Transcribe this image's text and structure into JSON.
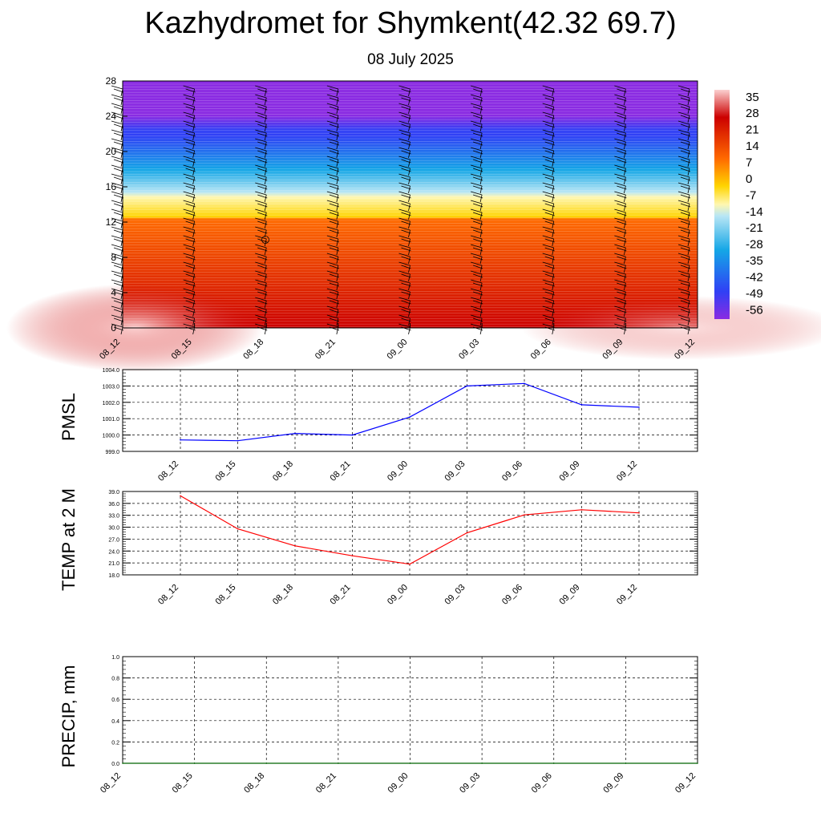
{
  "header": {
    "title": "Kazhydromet for Shymkent(42.32 69.7)",
    "subtitle": "08 July 2025"
  },
  "chart_data": [
    {
      "type": "heatmap",
      "title": "Kazhydromet for Shymkent(42.32 69.7)",
      "subtitle": "08 July 2025",
      "xlabel": "",
      "ylabel": "",
      "x_ticks": [
        "08_12",
        "08_15",
        "08_18",
        "08_21",
        "09_00",
        "09_03",
        "09_06",
        "09_09",
        "09_12"
      ],
      "y_ticks": [
        0,
        4,
        8,
        12,
        16,
        20,
        24,
        28
      ],
      "ylim": [
        0,
        28
      ],
      "colorbar_labels": [
        "35",
        "28",
        "21",
        "14",
        "7",
        "0",
        "-7",
        "-14",
        "-21",
        "-28",
        "-35",
        "-42",
        "-49",
        "-56"
      ],
      "colorbar_range": [
        -60,
        38
      ],
      "colors": {
        "warmest": "#fbd0d0",
        "hot": "#cc0000",
        "warm": "#ff6a00",
        "mild": "#ffd400",
        "zero": "#fff7b0",
        "cool": "#b8e6f5",
        "cold": "#14a6e6",
        "colder": "#3040f5",
        "coldest": "#8a2be2"
      },
      "grid": false,
      "legend": "right colorbar"
    },
    {
      "type": "line",
      "ylabel": "PMSL",
      "xlabel": "",
      "categories": [
        "08_12",
        "08_15",
        "08_18",
        "08_21",
        "09_00",
        "09_03",
        "09_06",
        "09_09",
        "09_12"
      ],
      "values": [
        999.7,
        999.65,
        1000.1,
        1000.0,
        1001.1,
        1003.0,
        1003.15,
        1001.85,
        1001.7
      ],
      "ylim": [
        999.0,
        1004.0
      ],
      "y_ticks": [
        "999.0",
        "1000.0",
        "1001.0",
        "1002.0",
        "1003.0",
        "1004.0"
      ],
      "color": "#0000ff",
      "grid": true
    },
    {
      "type": "line",
      "ylabel": "TEMP at 2 M",
      "xlabel": "",
      "categories": [
        "08_12",
        "08_15",
        "08_18",
        "08_21",
        "09_00",
        "09_03",
        "09_06",
        "09_09",
        "09_12"
      ],
      "values": [
        37.9,
        29.6,
        25.3,
        22.8,
        20.7,
        28.6,
        33.1,
        34.4,
        33.6
      ],
      "ylim": [
        18.0,
        39.0
      ],
      "y_ticks": [
        "18.0",
        "21.0",
        "24.0",
        "27.0",
        "30.0",
        "33.0",
        "36.0",
        "39.0"
      ],
      "color": "#ff0000",
      "grid": true
    },
    {
      "type": "line",
      "ylabel": "PRECIP, mm",
      "xlabel": "",
      "categories": [
        "08_12",
        "08_15",
        "08_18",
        "08_21",
        "09_00",
        "09_03",
        "09_06",
        "09_09",
        "09_12"
      ],
      "values": [
        0,
        0,
        0,
        0,
        0,
        0,
        0,
        0,
        0
      ],
      "ylim": [
        0.0,
        1.0
      ],
      "y_ticks": [
        "0.0",
        "0.2",
        "0.4",
        "0.6",
        "0.8",
        "1.0"
      ],
      "color": "#006400",
      "grid": true
    }
  ]
}
